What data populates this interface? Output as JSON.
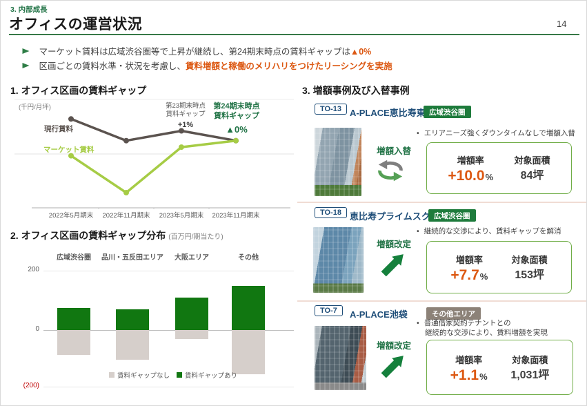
{
  "header": {
    "section": "3. 内部成長",
    "title": "オフィスの運営状況",
    "page_number": "14"
  },
  "key_messages": [
    {
      "text": "マーケット賃料は広域渋谷圏等で上昇が継続し、第24期末時点の賃料ギャップは",
      "emphasis": "▲0%"
    },
    {
      "text": "区画ごとの賃料水準・状況を考慮し、",
      "emphasis": "賃料増額と稼働のメリハリをつけたリーシングを実施"
    }
  ],
  "sections": {
    "chart1_title": "1. オフィス区画の賃料ギャップ",
    "chart2_title": "2. オフィス区画の賃料ギャップ分布",
    "chart2_unit": "(百万円/期当たり)",
    "cases_title": "3. 増額事例及び入替事例"
  },
  "chart_data": [
    {
      "type": "line",
      "title": "1. オフィス区画の賃料ギャップ",
      "unit": "(千円/月坪)",
      "x_labels": [
        "2022年5月期末",
        "2022年11月期末",
        "2023年5月期末",
        "2023年11月期末"
      ],
      "series": [
        {
          "name": "現行賃料",
          "color": "#5B534F",
          "values": [
            82,
            62,
            71,
            62
          ]
        },
        {
          "name": "マーケット賃料",
          "color": "#A6CC45",
          "values": [
            48,
            14,
            56,
            62
          ]
        }
      ],
      "value_note": "y-axis has no numeric ticks; values are relative estimates (0-100 of plot height), lines converge at final period",
      "gap_annotations": {
        "prev": {
          "line1": "第23期末時点",
          "line2": "賃料ギャップ",
          "value": "+1%"
        },
        "current": {
          "line1": "第24期末時点",
          "line2": "賃料ギャップ",
          "value": "▲0%"
        }
      },
      "grid": true,
      "legend_position": "inline-labels"
    },
    {
      "type": "bar",
      "title": "2. オフィス区画の賃料ギャップ分布",
      "unit": "(百万円/期当たり)",
      "categories": [
        "広域渋谷圏",
        "品川・五反田エリア",
        "大阪エリア",
        "その他"
      ],
      "series": [
        {
          "name": "賃料ギャップなし",
          "color": "#D6CFCB",
          "values": [
            -85,
            -100,
            -30,
            -150
          ]
        },
        {
          "name": "賃料ギャップあり",
          "color": "#117711",
          "values": [
            75,
            70,
            110,
            150
          ]
        }
      ],
      "ylim": [
        -200,
        200
      ],
      "y_ticks": [
        "200",
        "0",
        "(200)"
      ],
      "grid": true,
      "legend_position": "bottom"
    }
  ],
  "cases": [
    {
      "tag": "TO-13",
      "name": "A-PLACE恵比寿東",
      "badge": "広域渋谷圏",
      "badge_style": "green",
      "action": "増額入替",
      "icon": "swap-arrows-icon",
      "notes": [
        "エリアニーズ強くダウンタイムなしで増額入替"
      ],
      "rate_value": "+10.0",
      "rate_unit": "%",
      "area_value": "84坪"
    },
    {
      "tag": "TO-18",
      "name": "恵比寿プライムスクエア",
      "badge": "広域渋谷圏",
      "badge_style": "green",
      "action": "増額改定",
      "icon": "up-arrow-icon",
      "notes": [
        "継続的な交渉により、賃料ギャップを解消"
      ],
      "rate_value": "+7.7",
      "rate_unit": "%",
      "area_value": "153坪"
    },
    {
      "tag": "TO-7",
      "name": "A-PLACE池袋",
      "badge": "その他エリア",
      "badge_style": "gray",
      "action": "増額改定",
      "icon": "up-arrow-icon",
      "notes": [
        "普通借家契約テナントとの",
        "継続的な交渉により、賃料増額を実現"
      ],
      "rate_value": "+1.1",
      "rate_unit": "%",
      "area_value": "1,031坪"
    }
  ],
  "labels": {
    "bullet_char": "•",
    "rate_label": "増額率",
    "area_label": "対象面積"
  },
  "colors": {
    "accent_green": "#217346",
    "accent_orange": "#DC5812",
    "navy": "#1F4E79",
    "badge_green": "#1E7B3C",
    "badge_gray": "#8C8278",
    "box_border_green": "#70AD47",
    "bar_gap_green": "#117711",
    "bar_nogap_gray": "#D6CFCB",
    "line_current": "#5B534F",
    "line_market": "#A6CC45",
    "negative_red": "#C00000",
    "separator_pink": "#F0DCD4"
  }
}
